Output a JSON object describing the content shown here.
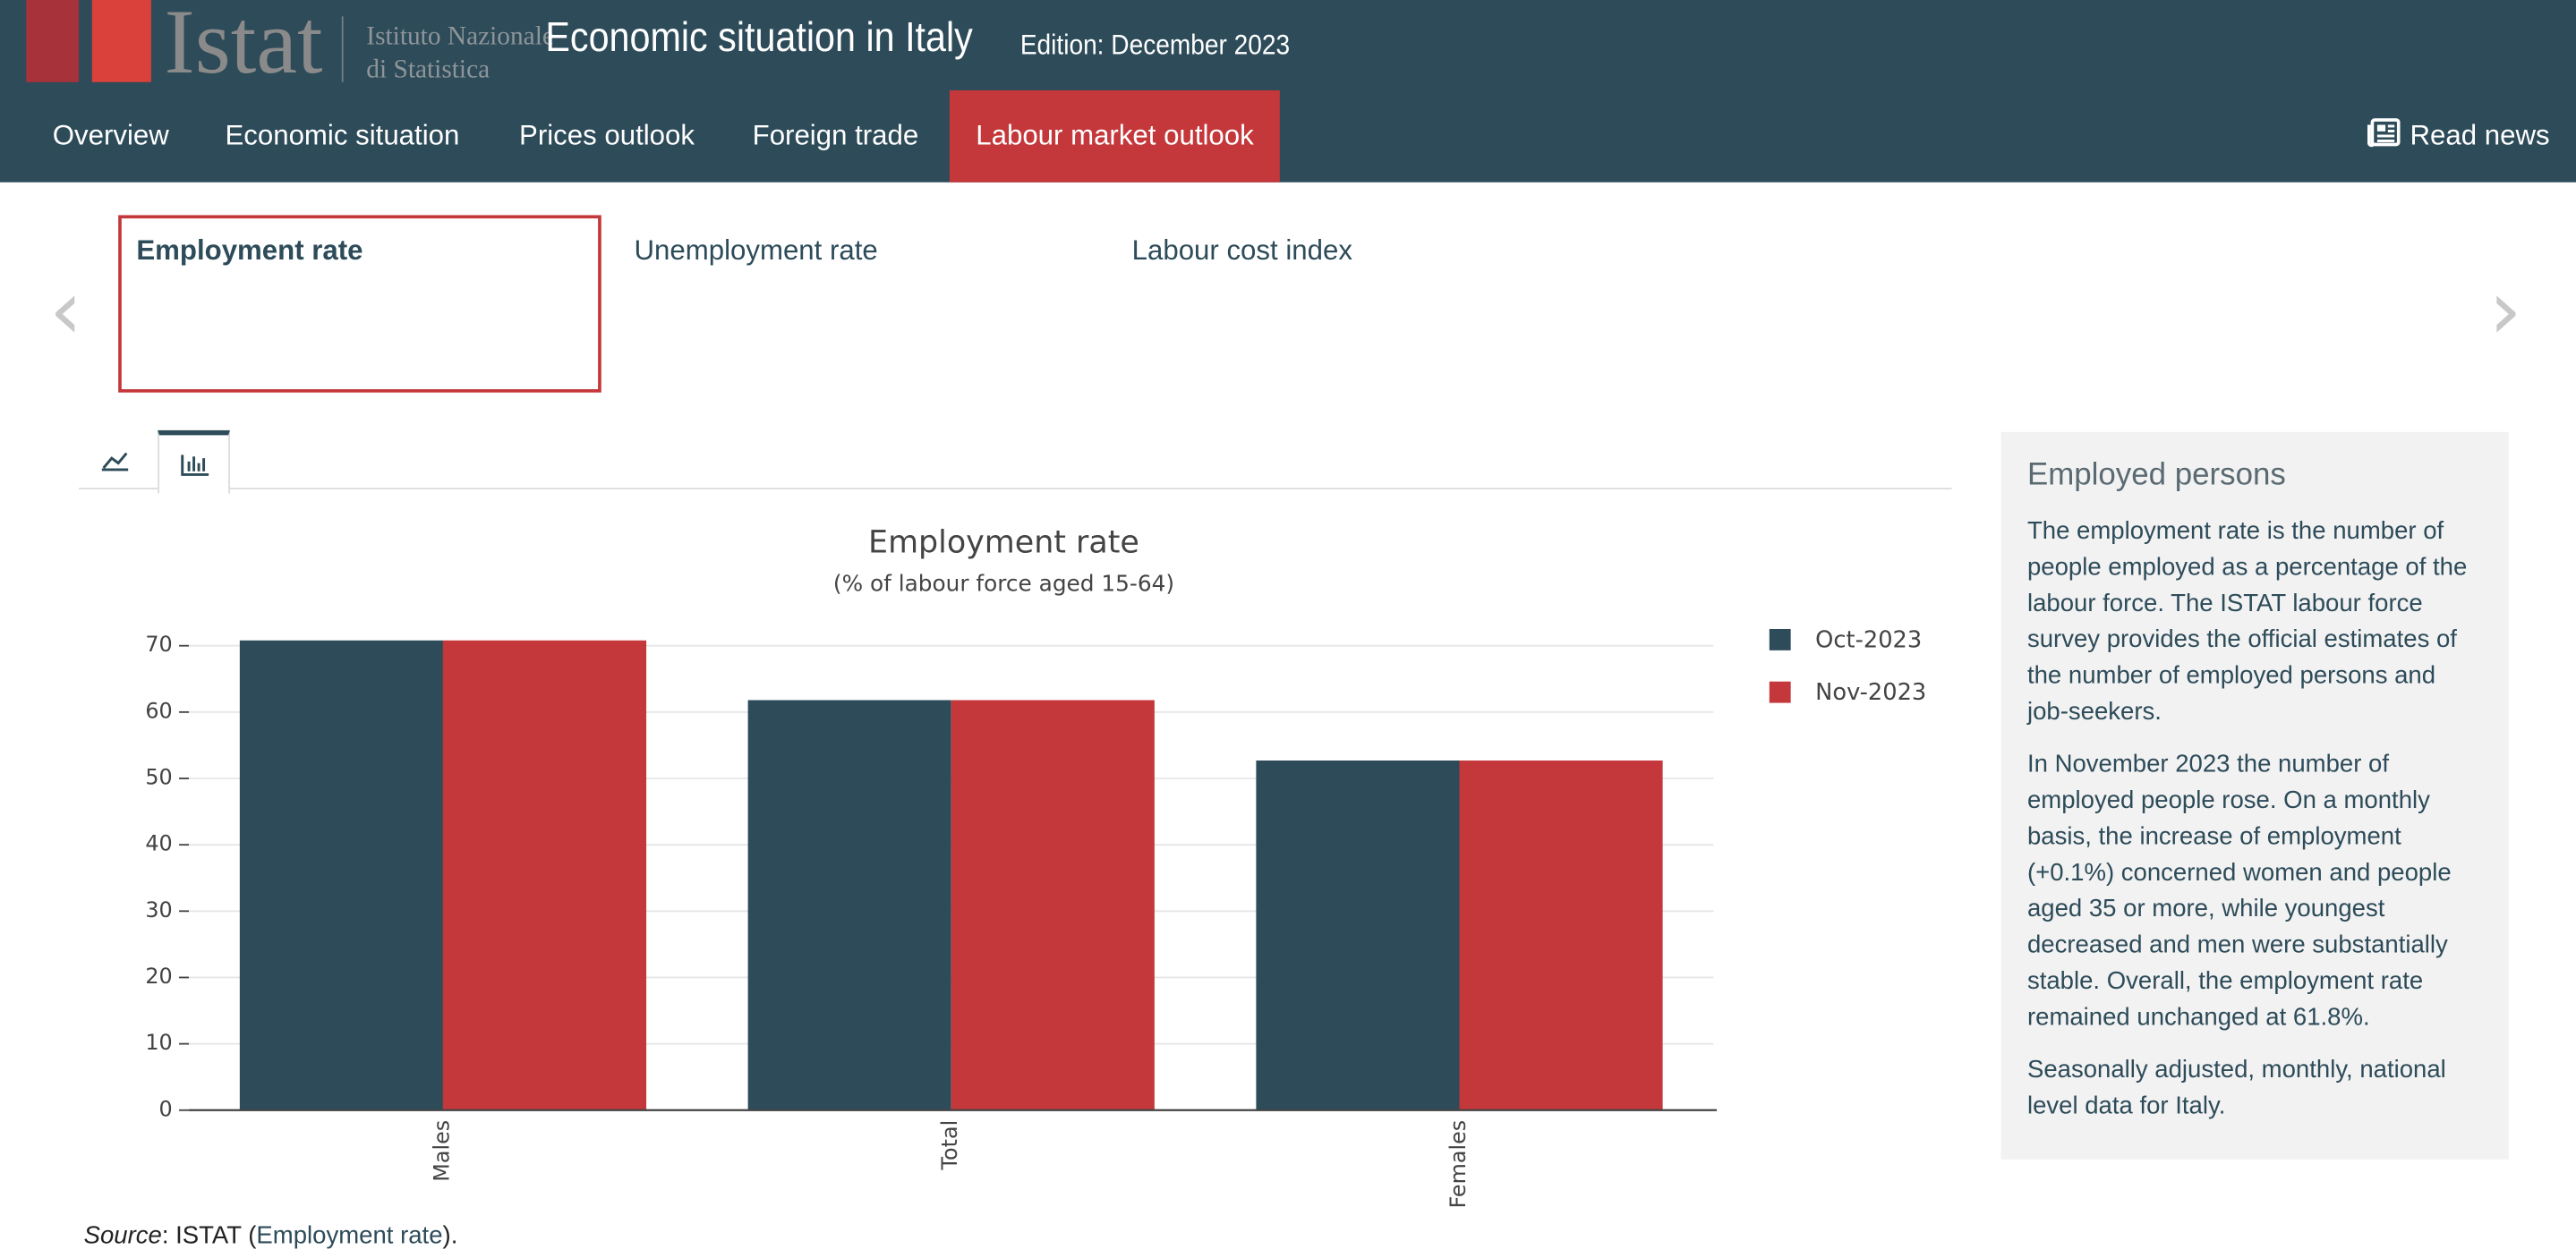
{
  "header": {
    "logo": {
      "word": "Istat",
      "line1": "Istituto Nazionale",
      "line2": "di Statistica"
    },
    "title": "Economic situation in Italy",
    "edition": "Edition: December 2023"
  },
  "nav": {
    "items": [
      "Overview",
      "Economic situation",
      "Prices outlook",
      "Foreign trade",
      "Labour market outlook"
    ],
    "active": 4,
    "read_news": "Read news"
  },
  "tabs": {
    "items": [
      "Employment rate",
      "Unemployment rate",
      "Labour cost index"
    ],
    "active": 0
  },
  "chart_data": {
    "type": "bar",
    "title": "Employment rate",
    "subtitle": "(% of labour force aged 15-64)",
    "categories": [
      "Males",
      "Total",
      "Females"
    ],
    "series": [
      {
        "name": "Oct-2023",
        "color": "#2d4b59",
        "values": [
          70.8,
          61.8,
          52.7
        ]
      },
      {
        "name": "Nov-2023",
        "color": "#c4373a",
        "values": [
          70.8,
          61.8,
          52.7
        ]
      }
    ],
    "ylim": [
      0,
      74.5
    ],
    "yticks": [
      0,
      10,
      20,
      30,
      40,
      50,
      60,
      70
    ],
    "grid": true,
    "legend": "right"
  },
  "sidebar": {
    "heading": "Employed persons",
    "paragraphs": [
      "The employment rate is the number of people employed as a percentage of the labour force. The ISTAT labour force survey provides the official estimates of the number of employed persons and job-seekers.",
      "In November 2023 the number of employed people rose. On a monthly basis, the increase of employment (+0.1%) concerned women and people aged 35 or more, while youngest decreased and men were substantially stable. Overall, the employment rate remained unchanged at 61.8%.",
      "Seasonally adjusted, monthly, national level data for Italy."
    ]
  },
  "source": {
    "prefix": "Source",
    "text": ": ISTAT (",
    "link": "Employment rate",
    "suffix": ")."
  }
}
